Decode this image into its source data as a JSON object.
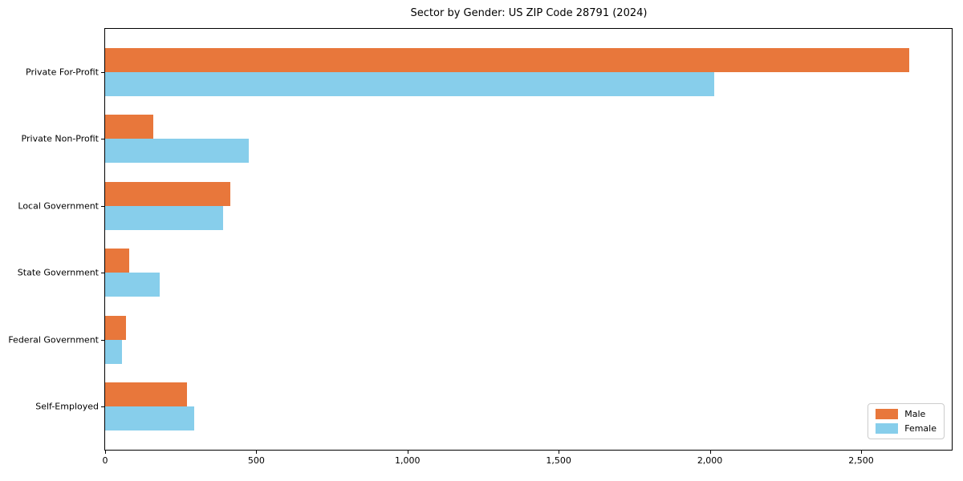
{
  "title": "Sector by Gender: US ZIP Code 28791 (2024)",
  "chart_data": {
    "type": "bar",
    "orientation": "horizontal",
    "title": "Sector by Gender: US ZIP Code 28791 (2024)",
    "xlabel": "",
    "ylabel": "",
    "categories": [
      "Private For-Profit",
      "Private Non-Profit",
      "Local Government",
      "State Government",
      "Federal Government",
      "Self-Employed"
    ],
    "series": [
      {
        "name": "Male",
        "color": "#e8773b",
        "values": [
          2660,
          160,
          415,
          80,
          70,
          270
        ]
      },
      {
        "name": "Female",
        "color": "#87ceeb",
        "values": [
          2015,
          475,
          390,
          180,
          55,
          295
        ]
      }
    ],
    "xlim": [
      0,
      2800
    ],
    "xticks": [
      0,
      500,
      1000,
      1500,
      2000,
      2500
    ],
    "xtick_labels": [
      "0",
      "500",
      "1,000",
      "1,500",
      "2,000",
      "2,500"
    ],
    "grid": false,
    "legend_position": "lower right",
    "frame_color": "#000000",
    "background_color": "#ffffff"
  }
}
